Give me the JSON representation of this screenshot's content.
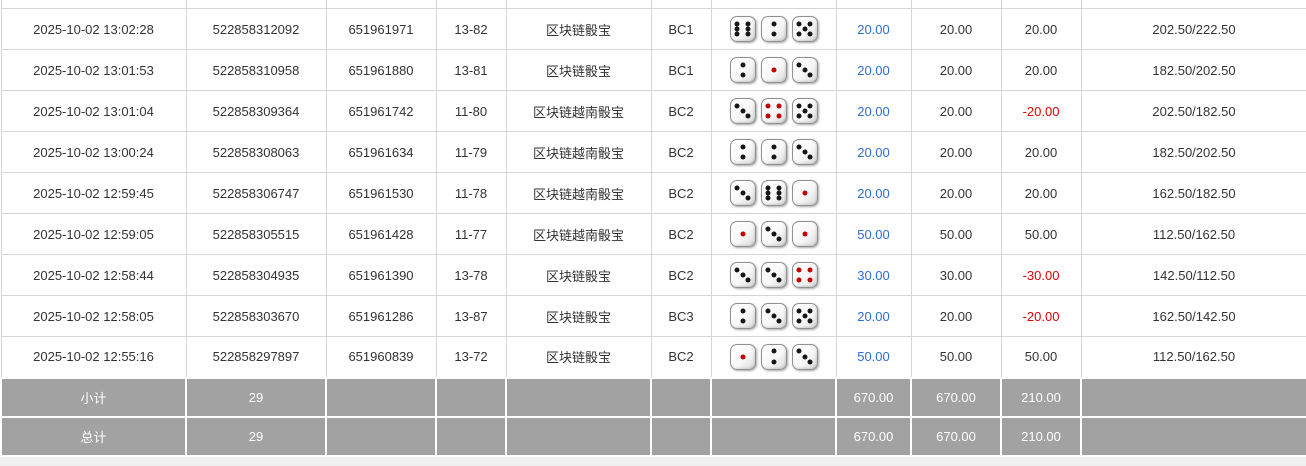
{
  "colors": {
    "bet_amount_link": "#2a6fd8",
    "negative_value": "#e00000",
    "summary_row_bg": "#a2a2a2",
    "summary_row_text": "#ffffff"
  },
  "table": {
    "rows": [
      {
        "time": "2025-10-02 13:02:28",
        "bet_id": "522858312092",
        "round_id": "651961971",
        "period": "13-82",
        "game": "区块链骰宝",
        "table_code": "BC1",
        "dice": [
          6,
          2,
          5
        ],
        "bet_amount": "20.00",
        "valid_amount": "20.00",
        "win_loss": "20.00",
        "balance": "202.50/222.50"
      },
      {
        "time": "2025-10-02 13:01:53",
        "bet_id": "522858310958",
        "round_id": "651961880",
        "period": "13-81",
        "game": "区块链骰宝",
        "table_code": "BC1",
        "dice": [
          2,
          1,
          3
        ],
        "bet_amount": "20.00",
        "valid_amount": "20.00",
        "win_loss": "20.00",
        "balance": "182.50/202.50"
      },
      {
        "time": "2025-10-02 13:01:04",
        "bet_id": "522858309364",
        "round_id": "651961742",
        "period": "11-80",
        "game": "区块链越南骰宝",
        "table_code": "BC2",
        "dice": [
          3,
          4,
          5
        ],
        "bet_amount": "20.00",
        "valid_amount": "20.00",
        "win_loss": "-20.00",
        "balance": "202.50/182.50"
      },
      {
        "time": "2025-10-02 13:00:24",
        "bet_id": "522858308063",
        "round_id": "651961634",
        "period": "11-79",
        "game": "区块链越南骰宝",
        "table_code": "BC2",
        "dice": [
          2,
          2,
          3
        ],
        "bet_amount": "20.00",
        "valid_amount": "20.00",
        "win_loss": "20.00",
        "balance": "182.50/202.50"
      },
      {
        "time": "2025-10-02 12:59:45",
        "bet_id": "522858306747",
        "round_id": "651961530",
        "period": "11-78",
        "game": "区块链越南骰宝",
        "table_code": "BC2",
        "dice": [
          3,
          6,
          1
        ],
        "bet_amount": "20.00",
        "valid_amount": "20.00",
        "win_loss": "20.00",
        "balance": "162.50/182.50"
      },
      {
        "time": "2025-10-02 12:59:05",
        "bet_id": "522858305515",
        "round_id": "651961428",
        "period": "11-77",
        "game": "区块链越南骰宝",
        "table_code": "BC2",
        "dice": [
          1,
          3,
          1
        ],
        "bet_amount": "50.00",
        "valid_amount": "50.00",
        "win_loss": "50.00",
        "balance": "112.50/162.50"
      },
      {
        "time": "2025-10-02 12:58:44",
        "bet_id": "522858304935",
        "round_id": "651961390",
        "period": "13-78",
        "game": "区块链骰宝",
        "table_code": "BC2",
        "dice": [
          3,
          3,
          4
        ],
        "bet_amount": "30.00",
        "valid_amount": "30.00",
        "win_loss": "-30.00",
        "balance": "142.50/112.50"
      },
      {
        "time": "2025-10-02 12:58:05",
        "bet_id": "522858303670",
        "round_id": "651961286",
        "period": "13-87",
        "game": "区块链骰宝",
        "table_code": "BC3",
        "dice": [
          2,
          3,
          5
        ],
        "bet_amount": "20.00",
        "valid_amount": "20.00",
        "win_loss": "-20.00",
        "balance": "162.50/142.50"
      },
      {
        "time": "2025-10-02 12:55:16",
        "bet_id": "522858297897",
        "round_id": "651960839",
        "period": "13-72",
        "game": "区块链骰宝",
        "table_code": "BC2",
        "dice": [
          1,
          2,
          3
        ],
        "bet_amount": "50.00",
        "valid_amount": "50.00",
        "win_loss": "50.00",
        "balance": "112.50/162.50"
      }
    ],
    "summary_rows": [
      {
        "label": "小计",
        "count": "29",
        "bet_amount": "670.00",
        "valid_amount": "670.00",
        "win_loss": "210.00"
      },
      {
        "label": "总计",
        "count": "29",
        "bet_amount": "670.00",
        "valid_amount": "670.00",
        "win_loss": "210.00"
      }
    ]
  },
  "dice_red_faces": [
    1,
    4
  ]
}
